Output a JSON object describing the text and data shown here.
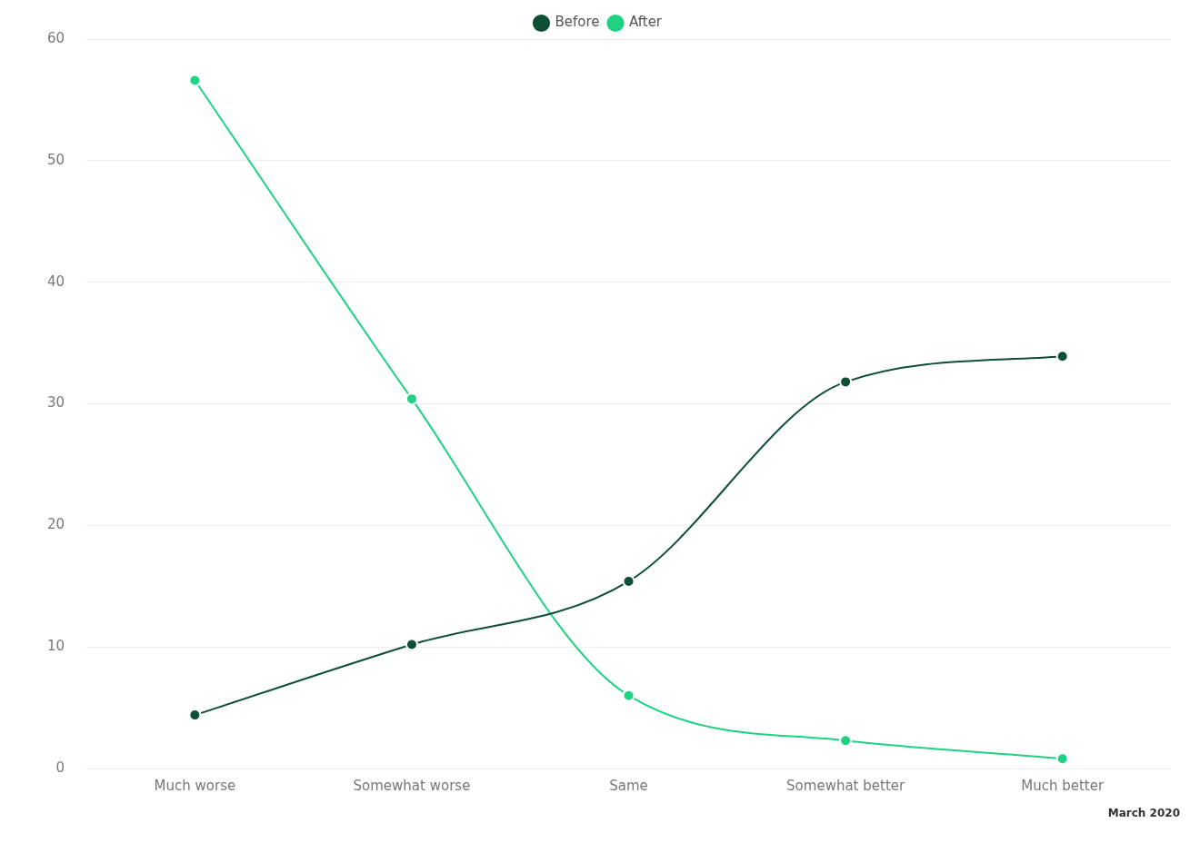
{
  "chart_data": {
    "type": "line",
    "categories": [
      "Much worse",
      "Somewhat worse",
      "Same",
      "Somewhat better",
      "Much better"
    ],
    "series": [
      {
        "name": "Before",
        "color": "#0e4f35",
        "values": [
          4.4,
          10.2,
          15.4,
          31.8,
          33.9
        ]
      },
      {
        "name": "After",
        "color": "#1fd282",
        "values": [
          56.6,
          30.4,
          6.0,
          2.3,
          0.8
        ]
      }
    ],
    "ylim": [
      0,
      60
    ],
    "yticks": [
      0,
      10,
      20,
      30,
      40,
      50,
      60
    ],
    "grid": "y",
    "legend": "top",
    "marker": "circle",
    "line_style": "solid",
    "annotations": [
      "March 2020"
    ]
  }
}
